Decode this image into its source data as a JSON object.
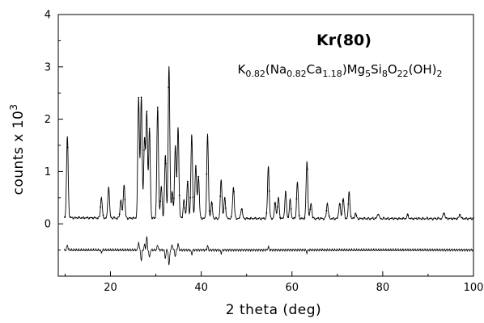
{
  "chart_data": {
    "type": "line",
    "title": "Kr(80)",
    "subtitle_parts": [
      {
        "t": "K",
        "sub": false
      },
      {
        "t": "0.82",
        "sub": true
      },
      {
        "t": "(Na",
        "sub": false
      },
      {
        "t": "0.82",
        "sub": true
      },
      {
        "t": "Ca",
        "sub": false
      },
      {
        "t": "1.18",
        "sub": true
      },
      {
        "t": ")Mg",
        "sub": false
      },
      {
        "t": "5",
        "sub": true
      },
      {
        "t": "Si",
        "sub": false
      },
      {
        "t": "8",
        "sub": true
      },
      {
        "t": "O",
        "sub": false
      },
      {
        "t": "22",
        "sub": true
      },
      {
        "t": "(OH)",
        "sub": false
      },
      {
        "t": "2",
        "sub": true
      }
    ],
    "xlabel": "2 theta (deg)",
    "ylabel_parts": [
      {
        "t": "counts x 10",
        "sup": false
      },
      {
        "t": "3",
        "sup": true
      }
    ],
    "xlim": [
      8.5,
      100
    ],
    "ylim": [
      -1,
      4
    ],
    "xticks": [
      20,
      40,
      60,
      80,
      100
    ],
    "yticks": [
      -1,
      0,
      1,
      2,
      3,
      4
    ],
    "ytick_labels": [
      "",
      "0",
      "1",
      "2",
      "3",
      "4"
    ],
    "background": 0.1,
    "difference_offset": -0.5,
    "series": [
      {
        "peaks": [
          [
            10.5,
            1.55
          ],
          [
            18.0,
            0.4
          ],
          [
            19.6,
            0.6
          ],
          [
            22.3,
            0.35
          ],
          [
            23.0,
            0.65
          ],
          [
            26.2,
            2.3
          ],
          [
            26.8,
            2.3
          ],
          [
            27.5,
            1.5
          ],
          [
            28.0,
            2.0
          ],
          [
            28.6,
            1.7
          ],
          [
            30.4,
            2.1
          ],
          [
            31.2,
            0.6
          ],
          [
            32.1,
            1.2
          ],
          [
            32.9,
            2.9
          ],
          [
            33.6,
            0.5
          ],
          [
            34.3,
            1.4
          ],
          [
            34.9,
            1.75
          ],
          [
            36.2,
            0.35
          ],
          [
            37.0,
            0.7
          ],
          [
            37.9,
            1.6
          ],
          [
            38.8,
            1.0
          ],
          [
            39.4,
            0.8
          ],
          [
            41.4,
            1.6
          ],
          [
            42.3,
            0.3
          ],
          [
            44.4,
            0.75
          ],
          [
            45.2,
            0.4
          ],
          [
            47.1,
            0.6
          ],
          [
            48.9,
            0.2
          ],
          [
            54.8,
            1.0
          ],
          [
            56.3,
            0.3
          ],
          [
            57.0,
            0.4
          ],
          [
            58.6,
            0.5
          ],
          [
            59.6,
            0.35
          ],
          [
            61.2,
            0.7
          ],
          [
            63.3,
            1.1
          ],
          [
            64.2,
            0.3
          ],
          [
            67.8,
            0.3
          ],
          [
            70.5,
            0.3
          ],
          [
            71.3,
            0.4
          ],
          [
            72.6,
            0.5
          ],
          [
            74.0,
            0.1
          ],
          [
            79.0,
            0.1
          ],
          [
            85.5,
            0.07
          ],
          [
            93.5,
            0.12
          ],
          [
            97.0,
            0.08
          ]
        ]
      }
    ],
    "difference_spikes": [
      [
        10.5,
        0.1
      ],
      [
        18.0,
        -0.05
      ],
      [
        26.2,
        0.15
      ],
      [
        26.8,
        -0.2
      ],
      [
        27.5,
        0.1
      ],
      [
        28.0,
        0.25
      ],
      [
        28.6,
        -0.15
      ],
      [
        30.4,
        0.1
      ],
      [
        32.1,
        -0.15
      ],
      [
        32.9,
        -0.3
      ],
      [
        33.6,
        0.1
      ],
      [
        34.3,
        -0.12
      ],
      [
        34.9,
        0.12
      ],
      [
        37.9,
        -0.08
      ],
      [
        41.4,
        0.08
      ],
      [
        44.4,
        -0.06
      ],
      [
        54.8,
        0.06
      ],
      [
        63.3,
        -0.05
      ]
    ]
  }
}
